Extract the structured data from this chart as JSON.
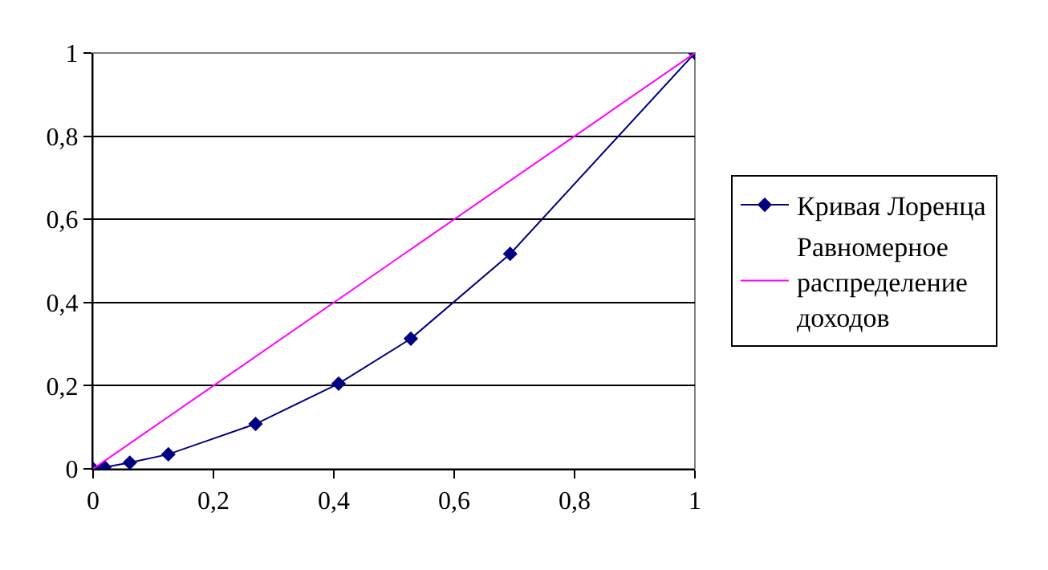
{
  "chart_data": {
    "type": "line",
    "series": [
      {
        "name": "Кривая Лоренца",
        "color": "#000080",
        "marker": "diamond",
        "x": [
          0,
          0.019,
          0.061,
          0.125,
          0.27,
          0.408,
          0.528,
          0.693,
          1
        ],
        "values": [
          0,
          0.004,
          0.015,
          0.035,
          0.108,
          0.205,
          0.313,
          0.517,
          1
        ]
      },
      {
        "name": "Равномерное распределение доходов",
        "color": "#ff00ff",
        "marker": "none",
        "x": [
          0,
          1
        ],
        "values": [
          0,
          1
        ]
      }
    ],
    "xlim": [
      0,
      1
    ],
    "ylim": [
      0,
      1
    ],
    "xticks": [
      0,
      {
        "value": 0.2,
        "label": "0,2"
      },
      {
        "value": 0.4,
        "label": "0,4"
      },
      {
        "value": 0.6,
        "label": "0,6"
      },
      {
        "value": 0.8,
        "label": "0,8"
      },
      1
    ],
    "yticks": [
      0,
      {
        "value": 0.2,
        "label": "0,2"
      },
      {
        "value": 0.4,
        "label": "0,4"
      },
      {
        "value": 0.6,
        "label": "0,6"
      },
      {
        "value": 0.8,
        "label": "0,8"
      },
      1
    ],
    "grid": "y",
    "legend": "right"
  }
}
